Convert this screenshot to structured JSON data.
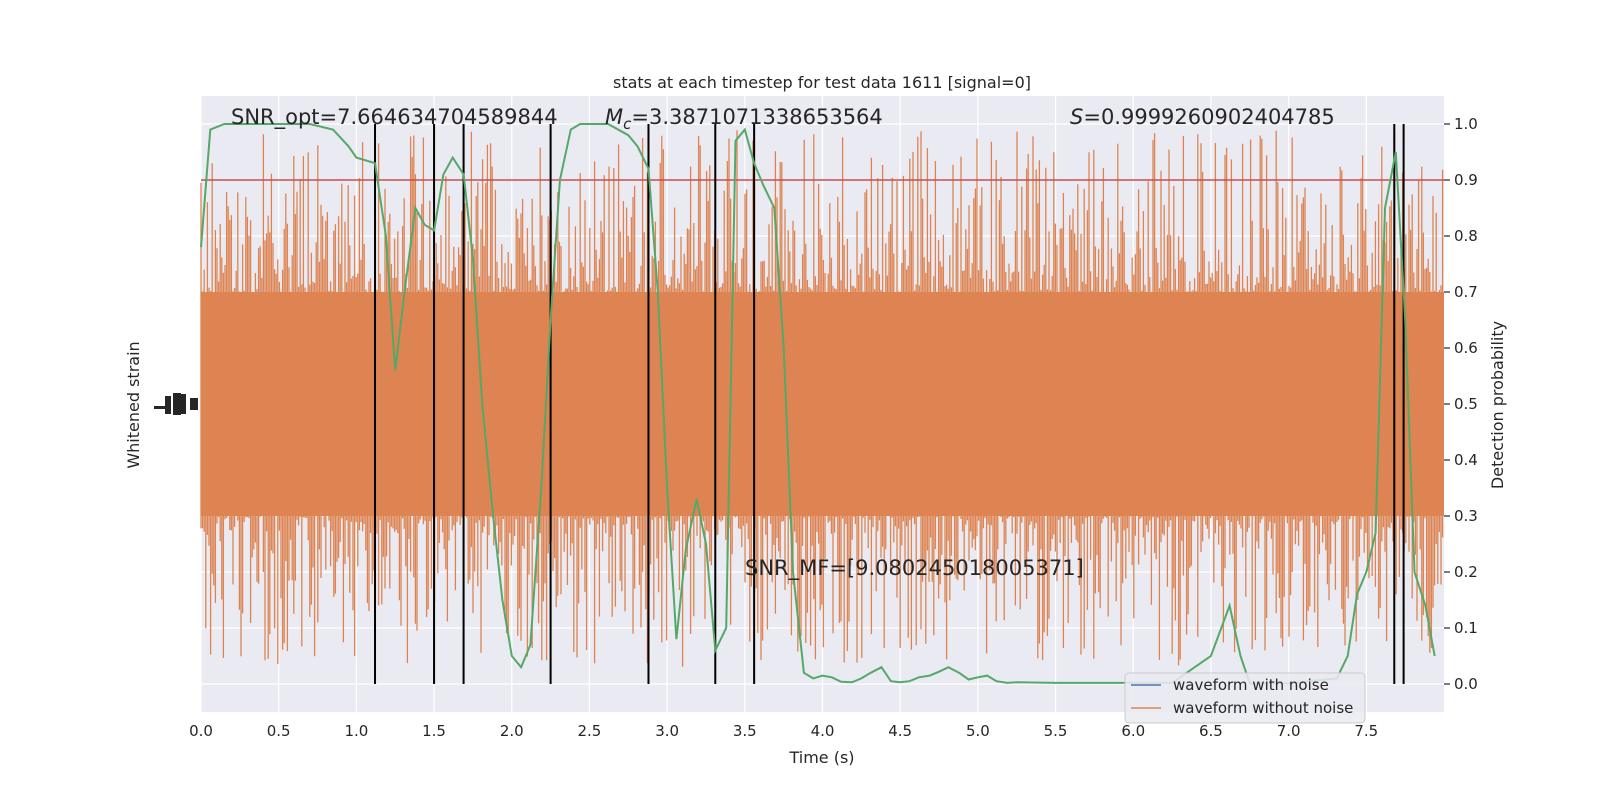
{
  "chart_data": {
    "type": "line",
    "title": "stats at each timestep for test data 1611 [signal=0]",
    "xlabel": "Time (s)",
    "ylabel_left": "Whitened strain",
    "ylabel_right": "Detection probability",
    "xlim": [
      0.0,
      8.0
    ],
    "ylim_right": [
      -0.05,
      1.05
    ],
    "xticks": [
      "0.0",
      "0.5",
      "1.0",
      "1.5",
      "2.0",
      "2.5",
      "3.0",
      "3.5",
      "4.0",
      "4.5",
      "5.0",
      "5.5",
      "6.0",
      "6.5",
      "7.0",
      "7.5"
    ],
    "yticks_right": [
      "0.0",
      "0.1",
      "0.2",
      "0.3",
      "0.4",
      "0.5",
      "0.6",
      "0.7",
      "0.8",
      "0.9",
      "1.0"
    ],
    "grid": true,
    "background": "#eaeaf2",
    "annotations": {
      "snr_opt": "SNR_opt=7.664634704589844",
      "mc_symbol": "M",
      "mc_sub": "c",
      "mc_value": "=3.3871071338653564",
      "s_symbol": "S",
      "s_value": "=0.9999260902404785",
      "snr_mf": "SNR_MF=[9.080245018005371]"
    },
    "threshold": {
      "value": 0.9,
      "color": "#c44e52"
    },
    "vertical_markers": [
      1.12,
      1.5,
      1.69,
      2.25,
      2.88,
      3.31,
      3.56,
      7.68,
      7.74
    ],
    "strain_band": {
      "color": "#dd8452",
      "dense_low": 0.3,
      "dense_high": 0.7,
      "spike_low": 0.03,
      "spike_high": 0.99
    },
    "series": [
      {
        "name": "waveform with noise",
        "color": "#4c72b0",
        "values": []
      },
      {
        "name": "waveform without noise",
        "color": "#dd8452",
        "values": []
      },
      {
        "name": "",
        "color": "#55a868",
        "x": [
          0.0,
          0.06,
          0.15,
          0.3,
          0.5,
          0.7,
          0.85,
          0.95,
          1.0,
          1.12,
          1.19,
          1.25,
          1.31,
          1.38,
          1.44,
          1.5,
          1.56,
          1.62,
          1.69,
          1.75,
          1.81,
          1.88,
          1.94,
          2.0,
          2.06,
          2.12,
          2.19,
          2.25,
          2.31,
          2.38,
          2.44,
          2.5,
          2.62,
          2.75,
          2.81,
          2.88,
          2.94,
          3.0,
          3.06,
          3.12,
          3.19,
          3.25,
          3.31,
          3.38,
          3.44,
          3.5,
          3.56,
          3.62,
          3.69,
          3.75,
          3.81,
          3.88,
          3.94,
          4.0,
          4.06,
          4.12,
          4.19,
          4.25,
          4.31,
          4.38,
          4.44,
          4.5,
          4.56,
          4.62,
          4.69,
          4.75,
          4.81,
          4.88,
          4.94,
          5.0,
          5.06,
          5.12,
          5.19,
          5.25,
          5.5,
          5.75,
          6.0,
          6.25,
          6.5,
          6.62,
          6.69,
          6.75,
          7.0,
          7.31,
          7.38,
          7.44,
          7.5,
          7.56,
          7.62,
          7.69,
          7.75,
          7.81,
          7.88,
          7.94
        ],
        "values": [
          0.78,
          0.99,
          1.0,
          1.0,
          1.0,
          1.0,
          0.99,
          0.96,
          0.94,
          0.93,
          0.8,
          0.56,
          0.7,
          0.85,
          0.82,
          0.81,
          0.91,
          0.94,
          0.91,
          0.76,
          0.5,
          0.3,
          0.15,
          0.05,
          0.03,
          0.07,
          0.35,
          0.65,
          0.9,
          0.99,
          1.0,
          1.0,
          1.0,
          0.98,
          0.96,
          0.92,
          0.7,
          0.35,
          0.08,
          0.24,
          0.33,
          0.25,
          0.06,
          0.1,
          0.97,
          0.99,
          0.93,
          0.89,
          0.85,
          0.6,
          0.2,
          0.02,
          0.01,
          0.015,
          0.012,
          0.004,
          0.003,
          0.01,
          0.02,
          0.03,
          0.005,
          0.003,
          0.005,
          0.012,
          0.015,
          0.022,
          0.03,
          0.02,
          0.008,
          0.012,
          0.015,
          0.005,
          0.002,
          0.003,
          0.002,
          0.002,
          0.002,
          0.002,
          0.05,
          0.14,
          0.05,
          0.001,
          0.001,
          0.01,
          0.05,
          0.16,
          0.2,
          0.27,
          0.85,
          0.95,
          0.65,
          0.2,
          0.14,
          0.05
        ]
      }
    ],
    "legend": {
      "placement": "lower-right",
      "entries": [
        "waveform with noise",
        "waveform without noise"
      ]
    }
  }
}
